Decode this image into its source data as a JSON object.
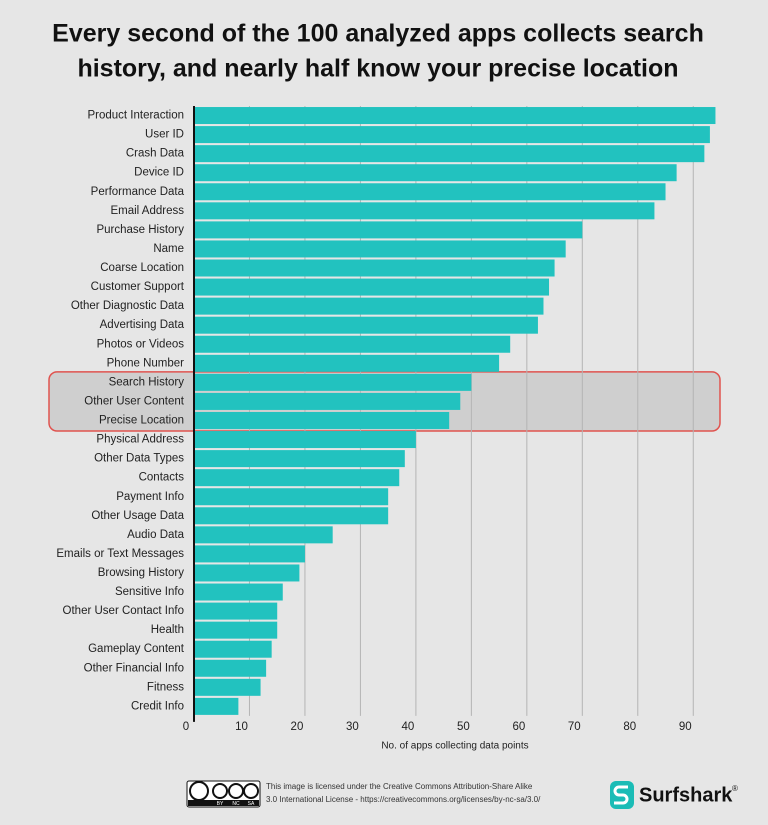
{
  "chart_data": {
    "type": "barh",
    "title": [
      "Every second of the 100 analyzed apps collects search",
      "history, and nearly half know your precise location"
    ],
    "categories": [
      "Product Interaction",
      "User ID",
      "Crash Data",
      "Device ID",
      "Performance Data",
      "Email Address",
      "Purchase History",
      "Name",
      "Coarse Location",
      "Customer Support",
      "Other Diagnostic Data",
      "Advertising Data",
      "Photos or Videos",
      "Phone Number",
      "Search History",
      "Other User Content",
      "Precise Location",
      "Physical Address",
      "Other Data Types",
      "Contacts",
      "Payment Info",
      "Other Usage Data",
      "Audio Data",
      "Emails or Text Messages",
      "Browsing History",
      "Sensitive Info",
      "Other User Contact Info",
      "Health",
      "Gameplay Content",
      "Other Financial Info",
      "Fitness",
      "Credit Info"
    ],
    "values": [
      94,
      93,
      92,
      87,
      85,
      83,
      70,
      67,
      65,
      64,
      63,
      62,
      57,
      55,
      50,
      48,
      46,
      40,
      38,
      37,
      35,
      35,
      25,
      20,
      19,
      16,
      15,
      15,
      14,
      13,
      12,
      8
    ],
    "color": "#22c2bf",
    "xlim": [
      0,
      95
    ],
    "xticks": [
      0,
      10,
      20,
      30,
      40,
      50,
      60,
      70,
      80,
      90
    ],
    "xlabel": "No. of apps collecting data points",
    "grid": true,
    "highlight": [
      14,
      16
    ],
    "highlight_color": "#e0534f"
  },
  "footer": {
    "cc_badge": [
      "BY",
      "NC",
      "SA"
    ],
    "license": [
      "This image is licensed under the Creative Commons Attribution-Share Alike",
      "3.0 International License - https://creativecommons.org/licenses/by-nc-sa/3.0/"
    ],
    "brand": "Surfshark",
    "brand_mark": "®"
  }
}
